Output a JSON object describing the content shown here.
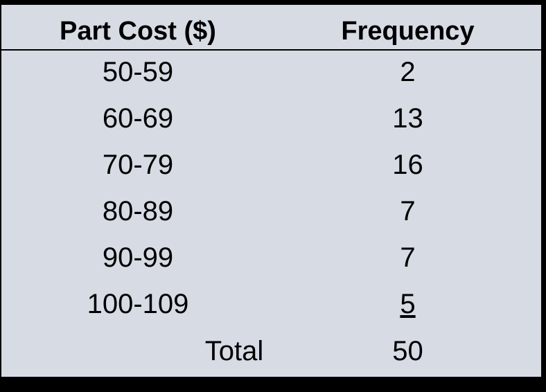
{
  "chart_data": {
    "type": "table",
    "columns": [
      "Part Cost ($)",
      "Frequency"
    ],
    "rows": [
      {
        "range": "50-59",
        "frequency": "2"
      },
      {
        "range": "60-69",
        "frequency": "13"
      },
      {
        "range": "70-79",
        "frequency": "16"
      },
      {
        "range": "80-89",
        "frequency": "7"
      },
      {
        "range": "90-99",
        "frequency": "7"
      },
      {
        "range": "100-109",
        "frequency": "5"
      }
    ],
    "total_label": "Total",
    "total_value": "50",
    "background_color": "#d6dbe4"
  }
}
